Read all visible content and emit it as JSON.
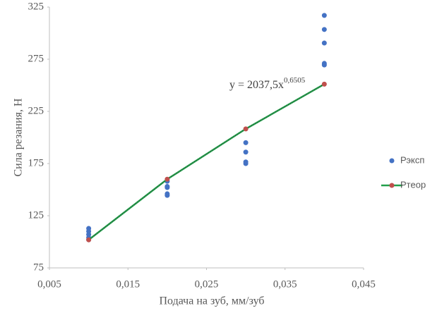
{
  "chart_data": {
    "type": "scatter",
    "xlabel": "Подача на зуб, мм/зуб",
    "ylabel": "Сила резания, Н",
    "annotation": {
      "text": "y = 2037,5x",
      "exponent": "0,6505"
    },
    "xlim": [
      0.005,
      0.045
    ],
    "xticks": [
      {
        "value": 0.005,
        "label": "0,005"
      },
      {
        "value": 0.015,
        "label": "0,015"
      },
      {
        "value": 0.025,
        "label": "0,025"
      },
      {
        "value": 0.035,
        "label": "0,035"
      },
      {
        "value": 0.045,
        "label": "0,045"
      }
    ],
    "ylim": [
      75,
      325
    ],
    "yticks": [
      75,
      125,
      175,
      225,
      275,
      325
    ],
    "grid": false,
    "legend": "right",
    "series": [
      {
        "name": "Рэксп",
        "color": "#4472c4",
        "x": [
          0.01,
          0.01,
          0.01,
          0.01,
          0.01,
          0.02,
          0.02,
          0.02,
          0.02,
          0.02,
          0.03,
          0.03,
          0.03,
          0.03,
          0.04,
          0.04,
          0.04,
          0.04,
          0.04
        ],
        "values": [
          112.8,
          110,
          107,
          104,
          102,
          158,
          153,
          152,
          146,
          144.5,
          195,
          186,
          176.5,
          175,
          317,
          303.5,
          290.5,
          271,
          269.5
        ]
      },
      {
        "name": "Ртеор",
        "color": "#22a04b",
        "marker_color": "#c0504d",
        "x": [
          0.01,
          0.02,
          0.03,
          0.04
        ],
        "values": [
          101.9,
          160,
          208.2,
          251.1
        ]
      }
    ]
  }
}
